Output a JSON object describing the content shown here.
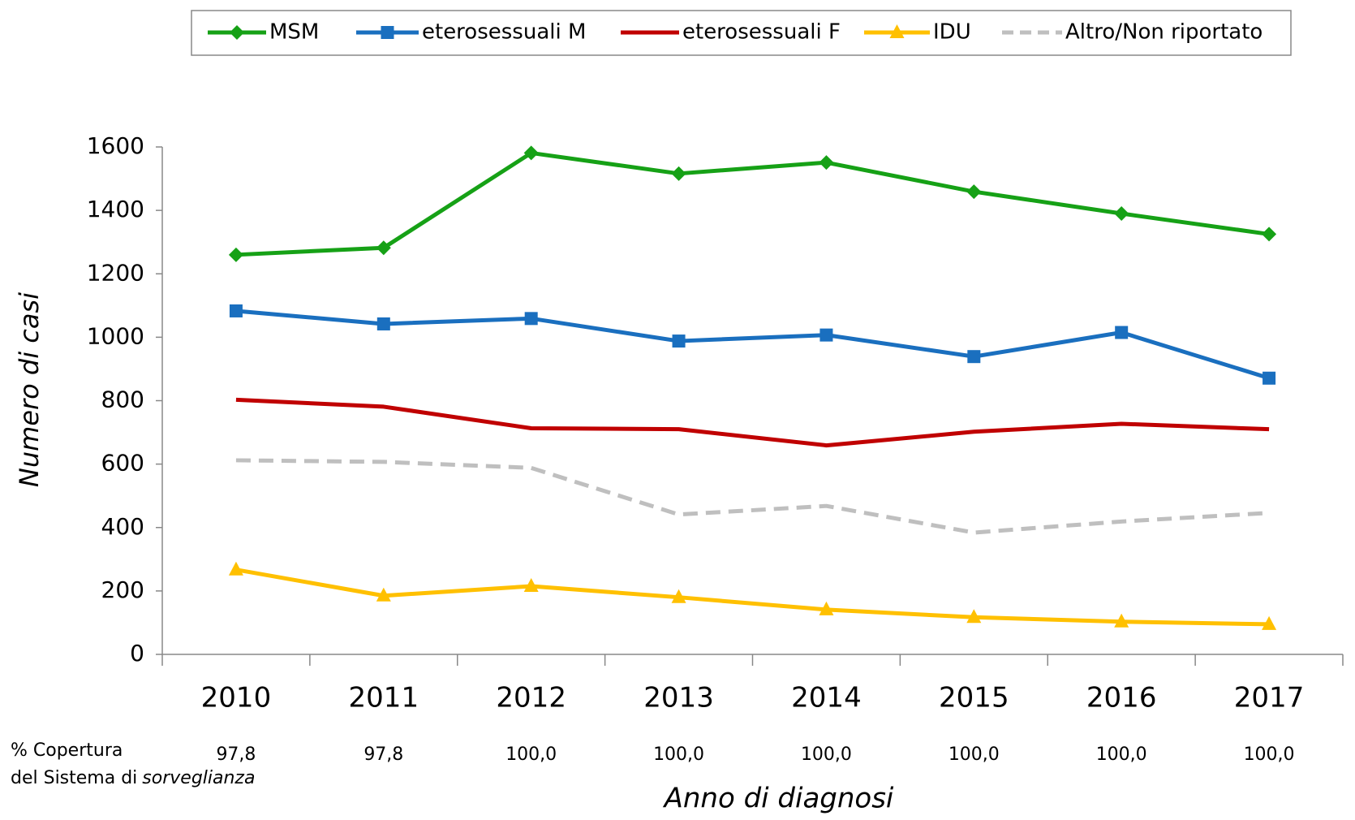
{
  "chart_data": {
    "type": "line",
    "categories": [
      "2010",
      "2011",
      "2012",
      "2013",
      "2014",
      "2015",
      "2016",
      "2017"
    ],
    "series": [
      {
        "name": "MSM",
        "color": "#16a116",
        "marker": "diamond",
        "values": [
          1260,
          1282,
          1581,
          1516,
          1551,
          1459,
          1390,
          1325
        ]
      },
      {
        "name": "eterosessuali M",
        "color": "#1a6fbf",
        "marker": "square",
        "values": [
          1083,
          1042,
          1059,
          988,
          1007,
          939,
          1015,
          871
        ]
      },
      {
        "name": "eterosessuali F",
        "color": "#c00000",
        "values": [
          803,
          781,
          713,
          710,
          659,
          702,
          727,
          710
        ]
      },
      {
        "name": "IDU",
        "color": "#ffc000",
        "marker": "triangle",
        "values": [
          267,
          185,
          215,
          180,
          141,
          117,
          103,
          95
        ]
      },
      {
        "name": "Altro/Non riportato",
        "color": "#bfbfbf",
        "dashed": true,
        "values": [
          612,
          607,
          588,
          441,
          468,
          384,
          419,
          446
        ]
      }
    ],
    "ylim": [
      0,
      1600
    ],
    "yticks": [
      0,
      200,
      400,
      600,
      800,
      1000,
      1200,
      1400,
      1600
    ],
    "x_label": "Anno di diagnosi",
    "y_label": "Numero di casi",
    "coverage_label": [
      "% Copertura",
      "del Sistema di",
      "sorveglianza"
    ],
    "coverage": [
      "97,8",
      "97,8",
      "100,0",
      "100,0",
      "100,0",
      "100,0",
      "100,0",
      "100,0"
    ],
    "legend": "top"
  }
}
